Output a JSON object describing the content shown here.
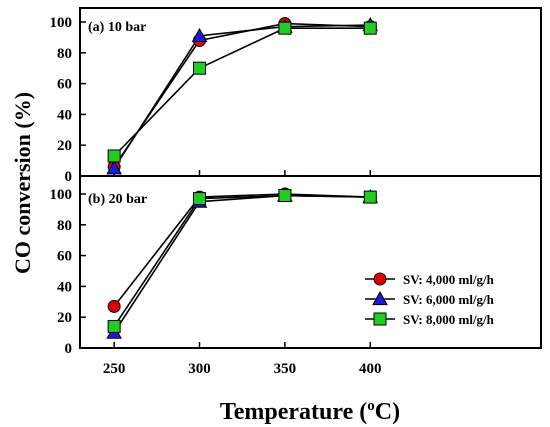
{
  "chart_data": {
    "type": "line",
    "xlabel": "Temperature (",
    "xlabel_sup": "o",
    "xlabel_unit": "C)",
    "ylabel": "CO conversion (%)",
    "x_ticks": [
      "250",
      "300",
      "350",
      "400"
    ],
    "y_ticks": [
      "0",
      "20",
      "40",
      "60",
      "80",
      "100"
    ],
    "xlim": [
      230,
      500
    ],
    "ylim": [
      0,
      105
    ],
    "grid": false,
    "legend_position": "lower-right",
    "panels": [
      {
        "label": "(a) 10 bar",
        "x": [
          250,
          300,
          350,
          400
        ],
        "series": [
          {
            "name": "SV: 4,000 ml/g/h",
            "color": "#e00000",
            "marker": "circle",
            "values": [
              6,
              88,
              99,
              97
            ]
          },
          {
            "name": "SV: 6,000 ml/g/h",
            "color": "#1a1adb",
            "marker": "triangle",
            "values": [
              5,
              91,
              97,
              98
            ]
          },
          {
            "name": "SV: 8,000 ml/g/h",
            "color": "#22cc22",
            "marker": "square",
            "values": [
              13,
              70,
              96,
              96
            ]
          }
        ]
      },
      {
        "label": "(b) 20 bar",
        "x": [
          250,
          300,
          350,
          400
        ],
        "series": [
          {
            "name": "SV: 4,000 ml/g/h",
            "color": "#e00000",
            "marker": "circle",
            "values": [
              27,
              98,
              100,
              98
            ]
          },
          {
            "name": "SV: 6,000 ml/g/h",
            "color": "#1a1adb",
            "marker": "triangle",
            "values": [
              10,
              95,
              99,
              98
            ]
          },
          {
            "name": "SV: 8,000 ml/g/h",
            "color": "#22cc22",
            "marker": "square",
            "values": [
              14,
              97,
              99,
              98
            ]
          }
        ]
      }
    ]
  }
}
